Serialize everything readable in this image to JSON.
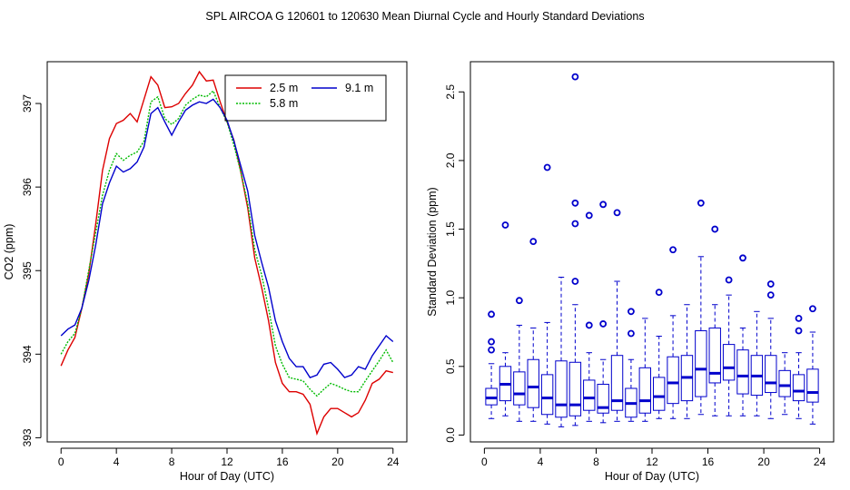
{
  "title": "SPL   AIRCOA G   120601 to 120630   Mean Diurnal Cycle and Hourly Standard Deviations",
  "chart_data": [
    {
      "type": "line",
      "title": "",
      "xlabel": "Hour of Day (UTC)",
      "ylabel": "CO2 (ppm)",
      "xlim": [
        -1,
        25
      ],
      "ylim": [
        392.95,
        397.5
      ],
      "xticks": [
        0,
        4,
        8,
        12,
        16,
        20,
        24
      ],
      "yticks": [
        393,
        394,
        395,
        396,
        397
      ],
      "legend_position": "top-right",
      "series": [
        {
          "name": "2.5 m",
          "color": "#dd0000",
          "style": "solid",
          "x": [
            0,
            0.5,
            1,
            1.5,
            2,
            2.5,
            3,
            3.5,
            4,
            4.5,
            5,
            5.5,
            6,
            6.5,
            7,
            7.5,
            8,
            8.5,
            9,
            9.5,
            10,
            10.5,
            11,
            11.5,
            12,
            12.5,
            13,
            13.5,
            14,
            14.5,
            15,
            15.5,
            16,
            16.5,
            17,
            17.5,
            18,
            18.5,
            19,
            19.5,
            20,
            20.5,
            21,
            21.5,
            22,
            22.5,
            23,
            23.5,
            24
          ],
          "values": [
            393.86,
            394.05,
            394.2,
            394.55,
            394.96,
            395.55,
            396.2,
            396.58,
            396.76,
            396.8,
            396.88,
            396.78,
            397.05,
            397.32,
            397.22,
            396.95,
            396.96,
            397.0,
            397.12,
            397.22,
            397.38,
            397.27,
            397.28,
            397.02,
            396.78,
            396.56,
            396.18,
            395.75,
            395.15,
            394.8,
            394.4,
            393.9,
            393.65,
            393.55,
            393.55,
            393.52,
            393.4,
            393.05,
            393.25,
            393.35,
            393.35,
            393.3,
            393.25,
            393.3,
            393.45,
            393.65,
            393.7,
            393.8,
            393.78
          ]
        },
        {
          "name": "5.8 m",
          "color": "#00bb00",
          "style": "dotted",
          "x": [
            0,
            0.5,
            1,
            1.5,
            2,
            2.5,
            3,
            3.5,
            4,
            4.5,
            5,
            5.5,
            6,
            6.5,
            7,
            7.5,
            8,
            8.5,
            9,
            9.5,
            10,
            10.5,
            11,
            11.5,
            12,
            12.5,
            13,
            13.5,
            14,
            14.5,
            15,
            15.5,
            16,
            16.5,
            17,
            17.5,
            18,
            18.5,
            19,
            19.5,
            20,
            20.5,
            21,
            21.5,
            22,
            22.5,
            23,
            23.5,
            24
          ],
          "values": [
            394.0,
            394.15,
            394.25,
            394.55,
            395.0,
            395.45,
            395.9,
            396.2,
            396.4,
            396.32,
            396.38,
            396.42,
            396.55,
            397.02,
            397.08,
            396.82,
            396.75,
            396.82,
            396.98,
            397.05,
            397.1,
            397.08,
            397.15,
            396.95,
            396.78,
            396.5,
            396.18,
            395.8,
            395.25,
            394.95,
            394.55,
            394.1,
            393.88,
            393.72,
            393.7,
            393.68,
            393.58,
            393.5,
            393.58,
            393.65,
            393.62,
            393.58,
            393.55,
            393.55,
            393.68,
            393.8,
            393.92,
            394.05,
            393.9
          ]
        },
        {
          "name": "9.1 m",
          "color": "#0000cc",
          "style": "solid",
          "x": [
            0,
            0.5,
            1,
            1.5,
            2,
            2.5,
            3,
            3.5,
            4,
            4.5,
            5,
            5.5,
            6,
            6.5,
            7,
            7.5,
            8,
            8.5,
            9,
            9.5,
            10,
            10.5,
            11,
            11.5,
            12,
            12.5,
            13,
            13.5,
            14,
            14.5,
            15,
            15.5,
            16,
            16.5,
            17,
            17.5,
            18,
            18.5,
            19,
            19.5,
            20,
            20.5,
            21,
            21.5,
            22,
            22.5,
            23,
            23.5,
            24
          ],
          "values": [
            394.22,
            394.3,
            394.35,
            394.55,
            394.88,
            395.3,
            395.8,
            396.05,
            396.25,
            396.18,
            396.22,
            396.3,
            396.48,
            396.88,
            396.95,
            396.78,
            396.62,
            396.78,
            396.92,
            396.98,
            397.02,
            397.0,
            397.05,
            396.95,
            396.8,
            396.55,
            396.25,
            395.95,
            395.42,
            395.1,
            394.8,
            394.4,
            394.15,
            393.95,
            393.85,
            393.85,
            393.72,
            393.75,
            393.88,
            393.9,
            393.82,
            393.72,
            393.75,
            393.85,
            393.82,
            393.98,
            394.1,
            394.22,
            394.15
          ]
        }
      ]
    },
    {
      "type": "box",
      "title": "",
      "xlabel": "Hour of Day (UTC)",
      "ylabel": "Standard Deviation (ppm)",
      "xlim": [
        -1,
        25
      ],
      "ylim": [
        -0.05,
        2.72
      ],
      "xticks": [
        0,
        4,
        8,
        12,
        16,
        20,
        24
      ],
      "yticks": [
        0.0,
        0.5,
        1.0,
        1.5,
        2.0,
        2.5
      ],
      "color": "#0000cc",
      "boxes": [
        {
          "hour": 0.5,
          "min": 0.12,
          "q1": 0.22,
          "median": 0.27,
          "q3": 0.34,
          "max": 0.52,
          "outliers": [
            0.62,
            0.68,
            0.88
          ]
        },
        {
          "hour": 1.5,
          "min": 0.14,
          "q1": 0.25,
          "median": 0.37,
          "q3": 0.5,
          "max": 0.6,
          "outliers": [
            1.53
          ]
        },
        {
          "hour": 2.5,
          "min": 0.1,
          "q1": 0.22,
          "median": 0.3,
          "q3": 0.46,
          "max": 0.8,
          "outliers": [
            0.98
          ]
        },
        {
          "hour": 3.5,
          "min": 0.1,
          "q1": 0.2,
          "median": 0.35,
          "q3": 0.55,
          "max": 0.78,
          "outliers": [
            1.41
          ]
        },
        {
          "hour": 4.5,
          "min": 0.08,
          "q1": 0.15,
          "median": 0.27,
          "q3": 0.44,
          "max": 0.82,
          "outliers": [
            1.95
          ]
        },
        {
          "hour": 5.5,
          "min": 0.06,
          "q1": 0.13,
          "median": 0.22,
          "q3": 0.54,
          "max": 1.15,
          "outliers": []
        },
        {
          "hour": 6.5,
          "min": 0.07,
          "q1": 0.14,
          "median": 0.22,
          "q3": 0.53,
          "max": 0.95,
          "outliers": [
            1.12,
            1.54,
            1.69,
            2.61
          ]
        },
        {
          "hour": 7.5,
          "min": 0.1,
          "q1": 0.18,
          "median": 0.27,
          "q3": 0.4,
          "max": 0.6,
          "outliers": [
            0.8,
            1.6
          ]
        },
        {
          "hour": 8.5,
          "min": 0.09,
          "q1": 0.16,
          "median": 0.2,
          "q3": 0.37,
          "max": 0.55,
          "outliers": [
            0.81,
            1.68
          ]
        },
        {
          "hour": 9.5,
          "min": 0.1,
          "q1": 0.18,
          "median": 0.25,
          "q3": 0.58,
          "max": 1.12,
          "outliers": [
            1.62
          ]
        },
        {
          "hour": 10.5,
          "min": 0.1,
          "q1": 0.13,
          "median": 0.23,
          "q3": 0.34,
          "max": 0.55,
          "outliers": [
            0.74,
            0.9
          ]
        },
        {
          "hour": 11.5,
          "min": 0.1,
          "q1": 0.16,
          "median": 0.25,
          "q3": 0.49,
          "max": 0.85,
          "outliers": []
        },
        {
          "hour": 12.5,
          "min": 0.12,
          "q1": 0.18,
          "median": 0.28,
          "q3": 0.42,
          "max": 0.72,
          "outliers": [
            1.04
          ]
        },
        {
          "hour": 13.5,
          "min": 0.12,
          "q1": 0.23,
          "median": 0.38,
          "q3": 0.57,
          "max": 0.87,
          "outliers": [
            1.35
          ]
        },
        {
          "hour": 14.5,
          "min": 0.12,
          "q1": 0.25,
          "median": 0.42,
          "q3": 0.58,
          "max": 0.95,
          "outliers": []
        },
        {
          "hour": 15.5,
          "min": 0.15,
          "q1": 0.28,
          "median": 0.48,
          "q3": 0.76,
          "max": 1.3,
          "outliers": [
            1.69
          ]
        },
        {
          "hour": 16.5,
          "min": 0.14,
          "q1": 0.38,
          "median": 0.45,
          "q3": 0.78,
          "max": 0.95,
          "outliers": [
            1.5
          ]
        },
        {
          "hour": 17.5,
          "min": 0.14,
          "q1": 0.4,
          "median": 0.49,
          "q3": 0.66,
          "max": 1.02,
          "outliers": [
            1.13
          ]
        },
        {
          "hour": 18.5,
          "min": 0.14,
          "q1": 0.3,
          "median": 0.43,
          "q3": 0.62,
          "max": 0.78,
          "outliers": [
            1.29
          ]
        },
        {
          "hour": 19.5,
          "min": 0.14,
          "q1": 0.29,
          "median": 0.43,
          "q3": 0.58,
          "max": 0.9,
          "outliers": []
        },
        {
          "hour": 20.5,
          "min": 0.12,
          "q1": 0.31,
          "median": 0.38,
          "q3": 0.58,
          "max": 0.85,
          "outliers": [
            1.02,
            1.1
          ]
        },
        {
          "hour": 21.5,
          "min": 0.15,
          "q1": 0.28,
          "median": 0.36,
          "q3": 0.47,
          "max": 0.6,
          "outliers": []
        },
        {
          "hour": 22.5,
          "min": 0.12,
          "q1": 0.25,
          "median": 0.32,
          "q3": 0.44,
          "max": 0.6,
          "outliers": [
            0.76,
            0.85
          ]
        },
        {
          "hour": 23.5,
          "min": 0.08,
          "q1": 0.24,
          "median": 0.31,
          "q3": 0.48,
          "max": 0.75,
          "outliers": [
            0.92
          ]
        }
      ]
    }
  ]
}
